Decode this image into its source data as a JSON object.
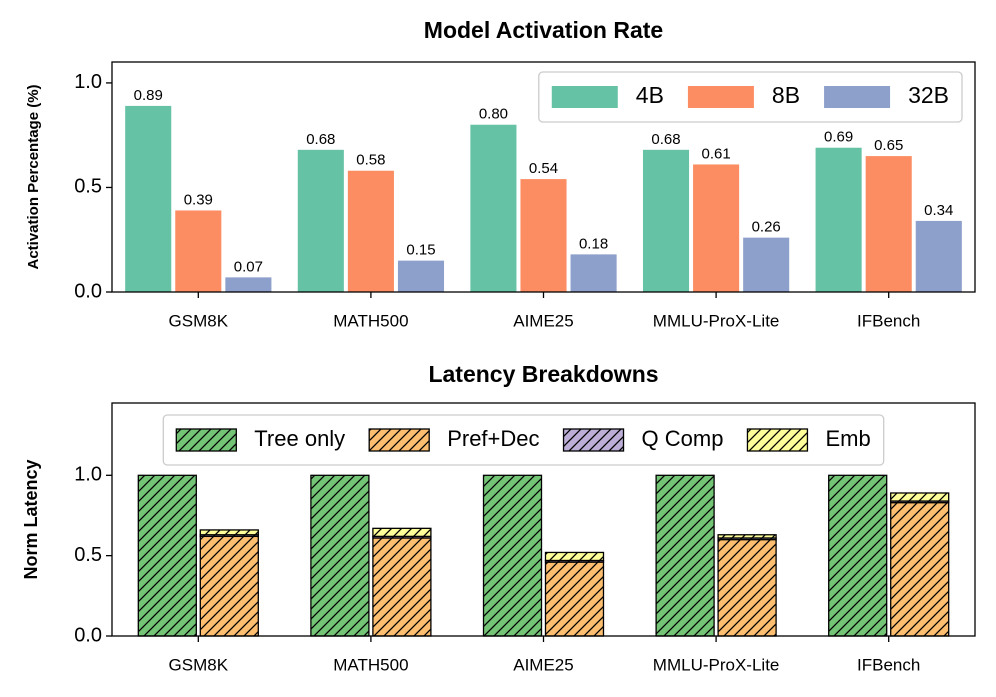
{
  "chart_data": [
    {
      "type": "bar",
      "title": "Model Activation Rate",
      "y_label": "Activation Percentage (%)",
      "categories": [
        "GSM8K",
        "MATH500",
        "AIME25",
        "MMLU-ProX-Lite",
        "IFBench"
      ],
      "series": [
        {
          "name": "4B",
          "color": "#66c2a5",
          "values": [
            0.89,
            0.68,
            0.8,
            0.68,
            0.69
          ],
          "value_labels": [
            "0.89",
            "0.68",
            "0.80",
            "0.68",
            "0.69"
          ]
        },
        {
          "name": "8B",
          "color": "#fc8d62",
          "values": [
            0.39,
            0.58,
            0.54,
            0.61,
            0.65
          ],
          "value_labels": [
            "0.39",
            "0.58",
            "0.54",
            "0.61",
            "0.65"
          ]
        },
        {
          "name": "32B",
          "color": "#8da0cb",
          "values": [
            0.07,
            0.15,
            0.18,
            0.26,
            0.34
          ],
          "value_labels": [
            "0.07",
            "0.15",
            "0.18",
            "0.26",
            "0.34"
          ]
        }
      ],
      "ylim": [
        0,
        1.1
      ],
      "yticks": [
        {
          "value": 0,
          "label": "0.0"
        },
        {
          "value": 0.5,
          "label": "0.5"
        },
        {
          "value": 1,
          "label": "1.0"
        }
      ],
      "legend": "upper right"
    },
    {
      "type": "stacked_bar",
      "title": "Latency Breakdowns",
      "y_label": "Norm Latency",
      "categories": [
        "GSM8K",
        "MATH500",
        "AIME25",
        "MMLU-ProX-Lite",
        "IFBench"
      ],
      "series": [
        {
          "name": "Tree only",
          "color": "#74c476",
          "stack": 0,
          "values": [
            1,
            1,
            1,
            1,
            1
          ]
        },
        {
          "name": "Pref+Dec",
          "color": "#fdbf6f",
          "stack": 1,
          "values": [
            0.62,
            0.61,
            0.46,
            0.6,
            0.83
          ]
        },
        {
          "name": "Q Comp",
          "color": "#bcaed6",
          "stack": 1,
          "values": [
            0.01,
            0.01,
            0.01,
            0.01,
            0.01
          ]
        },
        {
          "name": "Emb",
          "color": "#ffff99",
          "stack": 1,
          "values": [
            0.03,
            0.05,
            0.05,
            0.02,
            0.05
          ]
        }
      ],
      "ylim": [
        0,
        1.45
      ],
      "yticks": [
        {
          "value": 0,
          "label": "0.0"
        },
        {
          "value": 0.5,
          "label": "0.5"
        },
        {
          "value": 1,
          "label": "1.0"
        }
      ],
      "hatch": "//",
      "legend": "upper center"
    }
  ]
}
